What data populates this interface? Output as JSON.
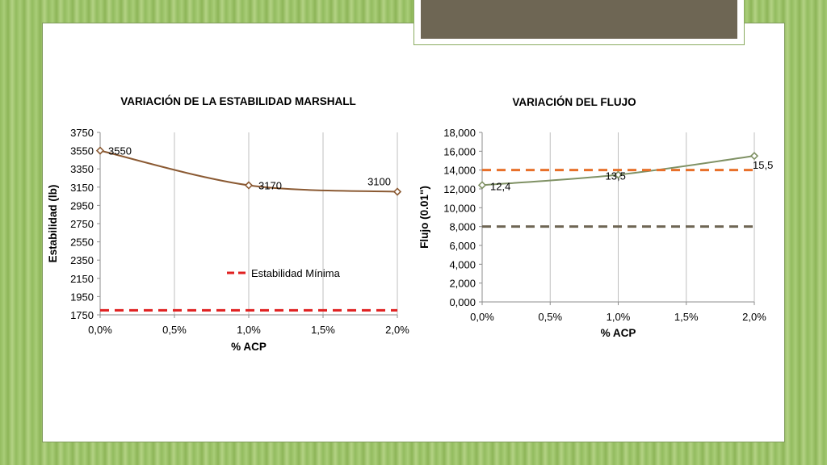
{
  "chart_data": [
    {
      "type": "line",
      "title": "VARIACIÓN DE LA ESTABILIDAD MARSHALL",
      "xlabel": "% ACP",
      "ylabel": "Estabilidad (lb)",
      "x": [
        0.0,
        1.0,
        2.0
      ],
      "x_ticks": [
        "0,0%",
        "0,5%",
        "1,0%",
        "1,5%",
        "2,0%"
      ],
      "x_tick_values": [
        0.0,
        0.5,
        1.0,
        1.5,
        2.0
      ],
      "xlim": [
        0.0,
        2.0
      ],
      "ylim": [
        1750,
        3750
      ],
      "y_ticks": [
        "1750",
        "1950",
        "2150",
        "2350",
        "2550",
        "2750",
        "2950",
        "3150",
        "3350",
        "3550",
        "3750"
      ],
      "y_tick_values": [
        1750,
        1950,
        2150,
        2350,
        2550,
        2750,
        2950,
        3150,
        3350,
        3550,
        3750
      ],
      "grid": "vertical",
      "series": [
        {
          "name": "",
          "values": [
            3550,
            3170,
            3100
          ],
          "labels": [
            "3550",
            "3170",
            "3100"
          ],
          "color": "#8b5a33",
          "style": "solid-smooth-diamond"
        },
        {
          "name": "Estabilidad Mínima",
          "values": [
            1800,
            1800,
            1800
          ],
          "color": "#e02020",
          "style": "dashed"
        }
      ],
      "legend": "center-right"
    },
    {
      "type": "line",
      "title": "VARIACIÓN DEL FLUJO",
      "xlabel": "% ACP",
      "ylabel": "Flujo (0.01\")",
      "x": [
        0.0,
        1.0,
        2.0
      ],
      "x_ticks": [
        "0,0%",
        "0,5%",
        "1,0%",
        "1,5%",
        "2,0%"
      ],
      "x_tick_values": [
        0.0,
        0.5,
        1.0,
        1.5,
        2.0
      ],
      "xlim": [
        0.0,
        2.0
      ],
      "ylim": [
        0,
        18
      ],
      "y_ticks": [
        "0,000",
        "2,000",
        "4,000",
        "6,000",
        "8,000",
        "10,000",
        "12,000",
        "14,000",
        "16,000",
        "18,000"
      ],
      "y_tick_values": [
        0,
        2,
        4,
        6,
        8,
        10,
        12,
        14,
        16,
        18
      ],
      "grid": "vertical",
      "series": [
        {
          "name": "",
          "values": [
            12.4,
            13.5,
            15.5
          ],
          "labels": [
            "12,4",
            "13,5",
            "15,5"
          ],
          "color": "#7f9164",
          "style": "solid-smooth-diamond"
        },
        {
          "name": "",
          "values": [
            14,
            14,
            14
          ],
          "color": "#e8702a",
          "style": "dashed"
        },
        {
          "name": "",
          "values": [
            8,
            8,
            8
          ],
          "color": "#6e6654",
          "style": "dashed"
        }
      ],
      "legend": "none"
    }
  ]
}
